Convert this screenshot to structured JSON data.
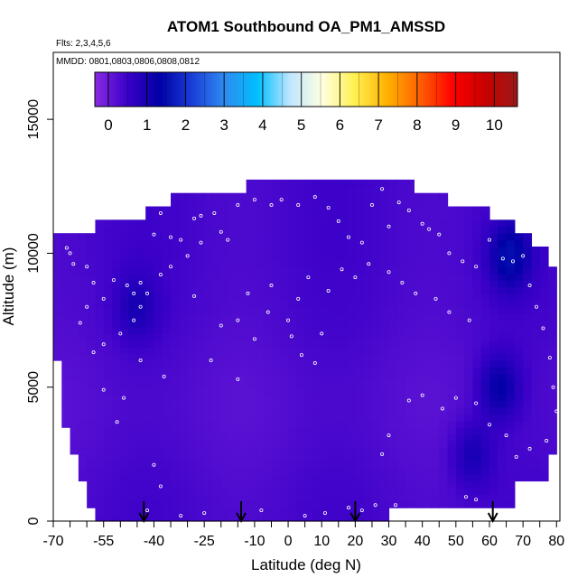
{
  "chart_data": {
    "type": "heatmap",
    "title": "ATOM1 Southbound OA_PM1_AMSSD",
    "flights_label": "Flts: 2,3,4,5,6",
    "dates_label": "MMDD: 0801,0803,0806,0808,0812",
    "xlabel": "Latitude (deg N)",
    "ylabel": "Altitude (m)",
    "xlim": [
      -70,
      81
    ],
    "ylim": [
      0,
      17500
    ],
    "x_ticks": [
      -70,
      -55,
      -40,
      -25,
      -10,
      0,
      10,
      20,
      30,
      40,
      50,
      60,
      70,
      80
    ],
    "x_tick_labels": [
      "-70",
      "-55",
      "-40",
      "-25",
      "-10",
      "0",
      "10",
      "20",
      "30",
      "40",
      "50",
      "60",
      "70",
      "80"
    ],
    "x_minor_ticks": [
      -65,
      -60,
      -50,
      -45,
      -35,
      -30,
      -20,
      -15,
      -5,
      5,
      15,
      25,
      35,
      45,
      55,
      65,
      75
    ],
    "y_ticks": [
      0,
      5000,
      10000,
      15000
    ],
    "y_tick_labels": [
      "0",
      "5000",
      "10000",
      "15000"
    ],
    "colorbar": {
      "min": -0.35,
      "max": 10.6,
      "ticks": [
        0,
        1,
        2,
        3,
        4,
        5,
        6,
        7,
        8,
        9,
        10
      ],
      "tick_labels": [
        "0",
        "1",
        "2",
        "3",
        "4",
        "5",
        "6",
        "7",
        "8",
        "9",
        "10"
      ],
      "colors": [
        "#8a2be2",
        "#3a00c8",
        "#0000a6",
        "#1a3fd8",
        "#2f8bf0",
        "#00bfff",
        "#bfe6ff",
        "#ffffe0",
        "#fff050",
        "#ffb000",
        "#ff6000",
        "#ff0000",
        "#c80000",
        "#9a1a1a"
      ]
    },
    "field_value_range": [
      0.0,
      1.5
    ],
    "typical_value": 0.3,
    "altitude_profile": [
      {
        "alt": 0,
        "lat_min": -58,
        "lat_max": 31
      },
      {
        "alt": 1000,
        "lat_min": -60,
        "lat_max": 67
      },
      {
        "alt": 2000,
        "lat_min": -63,
        "lat_max": 77
      },
      {
        "alt": 3000,
        "lat_min": -65,
        "lat_max": 79
      },
      {
        "alt": 4000,
        "lat_min": -67,
        "lat_max": 80
      },
      {
        "alt": 5000,
        "lat_min": -68,
        "lat_max": 80
      },
      {
        "alt": 7000,
        "lat_min": -69,
        "lat_max": 80
      },
      {
        "alt": 9000,
        "lat_min": -70,
        "lat_max": 79
      },
      {
        "alt": 10000,
        "lat_min": -70,
        "lat_max": 77
      },
      {
        "alt": 10500,
        "lat_min": -70,
        "lat_max": 73
      },
      {
        "alt": 11000,
        "lat_min": -58,
        "lat_max": 68
      },
      {
        "alt": 11500,
        "lat_min": -43,
        "lat_max": 60
      },
      {
        "alt": 12000,
        "lat_min": -35,
        "lat_max": 48
      },
      {
        "alt": 12500,
        "lat_min": -13,
        "lat_max": 38
      },
      {
        "alt": 13000,
        "lat_min": 27,
        "lat_max": 28
      },
      {
        "alt": 13600,
        "lat_min": 27,
        "lat_max": 28
      }
    ],
    "high_value_regions": [
      {
        "lat": 63,
        "alt": 5000,
        "value": 1.3
      },
      {
        "lat": 66,
        "alt": 9900,
        "value": 1.5
      },
      {
        "lat": 55,
        "alt": 2500,
        "value": 1.0
      },
      {
        "lat": -45,
        "alt": 8000,
        "value": 0.9
      }
    ],
    "sample_points": [
      [
        -66,
        10200
      ],
      [
        -65,
        10000
      ],
      [
        -64,
        9600
      ],
      [
        -60,
        9500
      ],
      [
        -58,
        8900
      ],
      [
        -52,
        9000
      ],
      [
        -55,
        8300
      ],
      [
        -48,
        8800
      ],
      [
        -46,
        8500
      ],
      [
        -44,
        8900
      ],
      [
        -40,
        10700
      ],
      [
        -38,
        11500
      ],
      [
        -35,
        10600
      ],
      [
        -32,
        10500
      ],
      [
        -28,
        11300
      ],
      [
        -26,
        11400
      ],
      [
        -22,
        11500
      ],
      [
        -20,
        10800
      ],
      [
        -18,
        10500
      ],
      [
        -15,
        11800
      ],
      [
        -10,
        12000
      ],
      [
        -5,
        11800
      ],
      [
        -2,
        12000
      ],
      [
        3,
        11800
      ],
      [
        8,
        12100
      ],
      [
        12,
        11700
      ],
      [
        15,
        11200
      ],
      [
        18,
        10600
      ],
      [
        22,
        10400
      ],
      [
        25,
        11800
      ],
      [
        28,
        12400
      ],
      [
        30,
        11000
      ],
      [
        33,
        11900
      ],
      [
        36,
        11600
      ],
      [
        40,
        11100
      ],
      [
        42,
        10900
      ],
      [
        45,
        10700
      ],
      [
        48,
        10000
      ],
      [
        52,
        9700
      ],
      [
        56,
        9500
      ],
      [
        60,
        10500
      ],
      [
        64,
        9800
      ],
      [
        67,
        9700
      ],
      [
        70,
        9900
      ],
      [
        72,
        8800
      ],
      [
        74,
        8000
      ],
      [
        76,
        7200
      ],
      [
        78,
        6100
      ],
      [
        79,
        5000
      ],
      [
        80,
        4100
      ],
      [
        77,
        3000
      ],
      [
        72,
        2700
      ],
      [
        68,
        2400
      ],
      [
        65,
        3200
      ],
      [
        60,
        3600
      ],
      [
        56,
        4400
      ],
      [
        50,
        4600
      ],
      [
        46,
        4200
      ],
      [
        40,
        4700
      ],
      [
        36,
        4500
      ],
      [
        30,
        3200
      ],
      [
        28,
        2500
      ],
      [
        -58,
        6300
      ],
      [
        -55,
        6600
      ],
      [
        -50,
        7000
      ],
      [
        -46,
        7500
      ],
      [
        -44,
        8000
      ],
      [
        -42,
        8500
      ],
      [
        -38,
        9200
      ],
      [
        -35,
        9500
      ],
      [
        -30,
        9900
      ],
      [
        -26,
        10400
      ],
      [
        -15,
        7500
      ],
      [
        -10,
        6800
      ],
      [
        -6,
        7800
      ],
      [
        0,
        7500
      ],
      [
        1,
        6900
      ],
      [
        4,
        6200
      ],
      [
        8,
        5900
      ],
      [
        10,
        7000
      ],
      [
        -15,
        5300
      ],
      [
        -23,
        6000
      ],
      [
        -28,
        8400
      ],
      [
        -55,
        4900
      ],
      [
        -51,
        3700
      ],
      [
        -40,
        2100
      ],
      [
        -38,
        1300
      ],
      [
        -32,
        200
      ],
      [
        -25,
        300
      ],
      [
        -42,
        400
      ],
      [
        -8,
        400
      ],
      [
        5,
        200
      ],
      [
        11,
        300
      ],
      [
        18,
        500
      ],
      [
        22,
        400
      ],
      [
        26,
        600
      ],
      [
        32,
        600
      ],
      [
        48,
        300
      ],
      [
        53,
        900
      ],
      [
        56,
        800
      ],
      [
        -60,
        8000
      ],
      [
        -62,
        7400
      ],
      [
        -49,
        4600
      ],
      [
        -44,
        6000
      ],
      [
        -37,
        5400
      ],
      [
        -20,
        7300
      ],
      [
        -12,
        8500
      ],
      [
        -5,
        8800
      ],
      [
        3,
        8300
      ],
      [
        6,
        9100
      ],
      [
        12,
        8600
      ],
      [
        16,
        9400
      ],
      [
        20,
        9100
      ],
      [
        24,
        9600
      ],
      [
        30,
        9300
      ],
      [
        34,
        8900
      ],
      [
        38,
        8500
      ],
      [
        44,
        8300
      ],
      [
        48,
        7800
      ],
      [
        54,
        7500
      ]
    ],
    "arrows_at_lat": [
      -43,
      -14,
      20,
      61
    ]
  }
}
